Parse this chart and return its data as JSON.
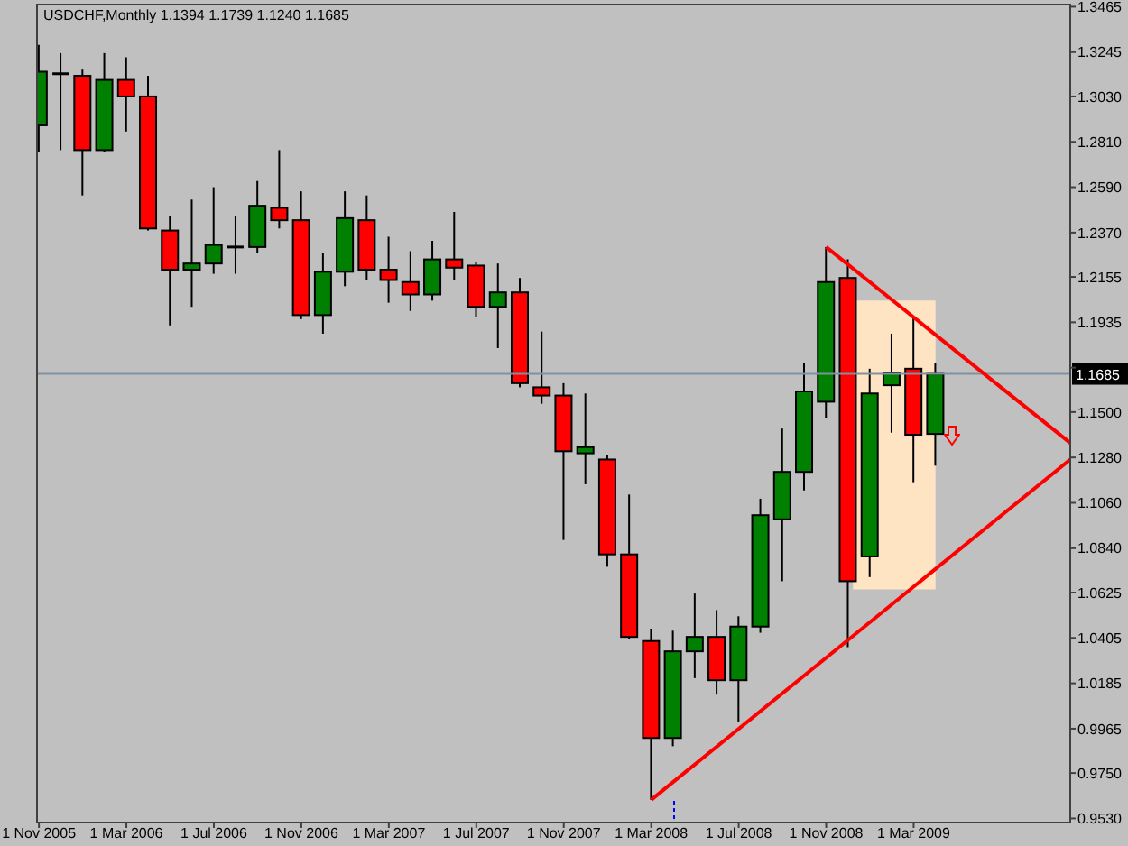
{
  "chart_data": {
    "type": "candlestick",
    "title": "USDCHF,Monthly 1.1394 1.1739 1.1240 1.1685",
    "x": [
      "2005-11",
      "2005-12",
      "2006-01",
      "2006-02",
      "2006-03",
      "2006-04",
      "2006-05",
      "2006-06",
      "2006-07",
      "2006-08",
      "2006-09",
      "2006-10",
      "2006-11",
      "2006-12",
      "2007-01",
      "2007-02",
      "2007-03",
      "2007-04",
      "2007-05",
      "2007-06",
      "2007-07",
      "2007-08",
      "2007-09",
      "2007-10",
      "2007-11",
      "2007-12",
      "2008-01",
      "2008-02",
      "2008-03",
      "2008-04",
      "2008-05",
      "2008-06",
      "2008-07",
      "2008-08",
      "2008-09",
      "2008-10",
      "2008-11",
      "2008-12",
      "2009-01",
      "2009-02",
      "2009-03",
      "2009-04"
    ],
    "ohlc": [
      [
        1.289,
        1.328,
        1.276,
        1.315
      ],
      [
        1.314,
        1.324,
        1.277,
        1.314
      ],
      [
        1.313,
        1.316,
        1.255,
        1.277
      ],
      [
        1.277,
        1.324,
        1.276,
        1.311
      ],
      [
        1.311,
        1.322,
        1.286,
        1.303
      ],
      [
        1.303,
        1.313,
        1.238,
        1.239
      ],
      [
        1.238,
        1.245,
        1.192,
        1.219
      ],
      [
        1.219,
        1.253,
        1.201,
        1.222
      ],
      [
        1.222,
        1.259,
        1.217,
        1.231
      ],
      [
        1.23,
        1.245,
        1.217,
        1.23
      ],
      [
        1.23,
        1.262,
        1.227,
        1.25
      ],
      [
        1.249,
        1.277,
        1.239,
        1.243
      ],
      [
        1.243,
        1.257,
        1.195,
        1.197
      ],
      [
        1.197,
        1.227,
        1.188,
        1.218
      ],
      [
        1.218,
        1.257,
        1.211,
        1.244
      ],
      [
        1.243,
        1.255,
        1.214,
        1.219
      ],
      [
        1.219,
        1.235,
        1.203,
        1.214
      ],
      [
        1.213,
        1.228,
        1.199,
        1.207
      ],
      [
        1.207,
        1.233,
        1.204,
        1.224
      ],
      [
        1.224,
        1.247,
        1.214,
        1.22
      ],
      [
        1.221,
        1.223,
        1.196,
        1.201
      ],
      [
        1.201,
        1.222,
        1.181,
        1.208
      ],
      [
        1.208,
        1.215,
        1.162,
        1.164
      ],
      [
        1.162,
        1.189,
        1.154,
        1.158
      ],
      [
        1.158,
        1.164,
        1.088,
        1.131
      ],
      [
        1.13,
        1.159,
        1.115,
        1.133
      ],
      [
        1.127,
        1.129,
        1.075,
        1.081
      ],
      [
        1.081,
        1.11,
        1.04,
        1.041
      ],
      [
        1.039,
        1.045,
        0.962,
        0.992
      ],
      [
        0.992,
        1.044,
        0.988,
        1.034
      ],
      [
        1.034,
        1.062,
        1.021,
        1.041
      ],
      [
        1.041,
        1.054,
        1.013,
        1.02
      ],
      [
        1.02,
        1.051,
        1.0,
        1.046
      ],
      [
        1.046,
        1.108,
        1.043,
        1.1
      ],
      [
        1.098,
        1.142,
        1.068,
        1.121
      ],
      [
        1.121,
        1.174,
        1.112,
        1.16
      ],
      [
        1.155,
        1.23,
        1.147,
        1.213
      ],
      [
        1.215,
        1.224,
        1.036,
        1.068
      ],
      [
        1.08,
        1.171,
        1.07,
        1.159
      ],
      [
        1.163,
        1.188,
        1.14,
        1.169
      ],
      [
        1.171,
        1.196,
        1.116,
        1.139
      ],
      [
        1.1394,
        1.1739,
        1.124,
        1.1685
      ]
    ],
    "colors": [
      "#008000",
      "#000000",
      "#ff0000",
      "#008000",
      "#ff0000",
      "#ff0000",
      "#ff0000",
      "#008000",
      "#008000",
      "#000000",
      "#008000",
      "#ff0000",
      "#ff0000",
      "#008000",
      "#008000",
      "#ff0000",
      "#ff0000",
      "#ff0000",
      "#008000",
      "#ff0000",
      "#ff0000",
      "#008000",
      "#ff0000",
      "#ff0000",
      "#ff0000",
      "#008000",
      "#ff0000",
      "#ff0000",
      "#ff0000",
      "#008000",
      "#008000",
      "#ff0000",
      "#008000",
      "#008000",
      "#008000",
      "#008000",
      "#008000",
      "#ff0000",
      "#008000",
      "#008000",
      "#ff0000",
      "#008000"
    ],
    "series": [
      {
        "type": "line",
        "x": [
          "2008-12-08",
          "2009-04-01"
        ],
        "values": [
          null,
          null
        ],
        "lower": [
          1.064,
          1.064
        ],
        "upper": [
          1.204,
          1.204
        ],
        "color": "#ffe4c4"
      },
      {
        "type": "line",
        "x": [
          "2008-11",
          "2009-10-06"
        ],
        "values": [
          1.23,
          1.135
        ],
        "color": "#ff0000"
      },
      {
        "type": "line",
        "x": [
          "2008-03",
          "2009-10-06"
        ],
        "values": [
          0.962,
          1.127
        ],
        "color": "#ff0000"
      }
    ],
    "ref_lines": [
      {
        "axis": "y",
        "value": 1.1685,
        "label": "1.1685",
        "color": "#8090a0"
      }
    ],
    "xlim": [
      "2005-10-28",
      "2009-10-06"
    ],
    "xticks": [
      {
        "value": "2005-11",
        "label": "1 Nov 2005"
      },
      {
        "value": "2006-03",
        "label": "1 Mar 2006"
      },
      {
        "value": "2006-07",
        "label": "1 Jul 2006"
      },
      {
        "value": "2006-11",
        "label": "1 Nov 2006"
      },
      {
        "value": "2007-03",
        "label": "1 Mar 2007"
      },
      {
        "value": "2007-07",
        "label": "1 Jul 2007"
      },
      {
        "value": "2007-11",
        "label": "1 Nov 2007"
      },
      {
        "value": "2008-03",
        "label": "1 Mar 2008"
      },
      {
        "value": "2008-07",
        "label": "1 Jul 2008"
      },
      {
        "value": "2008-11",
        "label": "1 Nov 2008"
      },
      {
        "value": "2009-03",
        "label": "1 Mar 2009"
      }
    ],
    "ylim": [
      0.951,
      1.348
    ],
    "yticks": [
      1.3465,
      1.3245,
      {
        "value": 1.303,
        "label": "1.3030"
      },
      {
        "value": 1.281,
        "label": "1.2810"
      },
      {
        "value": 1.259,
        "label": "1.2590"
      },
      {
        "value": 1.237,
        "label": "1.2370"
      },
      1.2155,
      1.1935,
      {
        "value": 1.1715,
        "label": null
      },
      {
        "value": 1.15,
        "label": "1.1500"
      },
      {
        "value": 1.128,
        "label": "1.1280"
      },
      {
        "value": 1.106,
        "label": "1.1060"
      },
      {
        "value": 1.084,
        "label": "1.0840"
      },
      1.0625,
      1.0405,
      1.0185,
      0.9965,
      {
        "value": 0.975,
        "label": "0.9750"
      },
      {
        "value": 0.953,
        "label": "0.9530"
      }
    ]
  }
}
